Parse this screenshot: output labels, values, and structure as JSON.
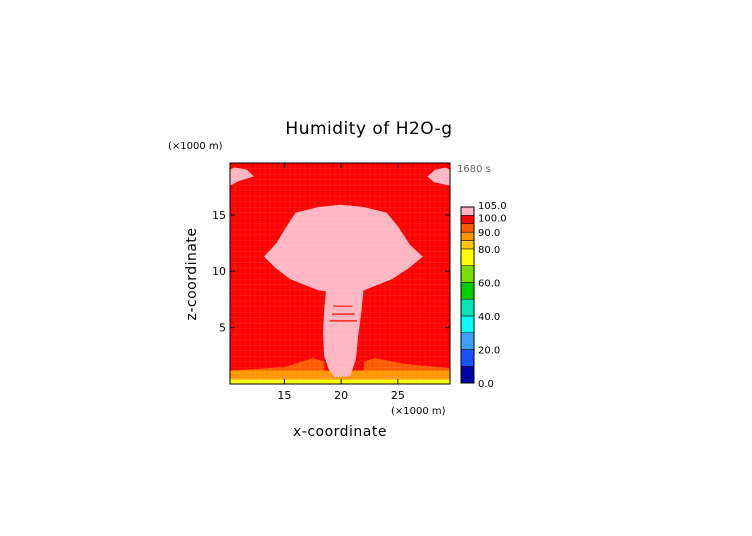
{
  "chart_data": {
    "type": "heatmap",
    "title": "Humidity of H2O-g",
    "time_label": "1680 s",
    "xlabel": "x-coordinate",
    "ylabel": "z-coordinate",
    "x_unit": "(×1000 m)",
    "y_unit": "(×1000 m)",
    "xlim": [
      10.2,
      29.6
    ],
    "ylim": [
      0,
      19.6
    ],
    "x_ticks": [
      15,
      20,
      25
    ],
    "y_ticks": [
      5,
      10,
      15
    ],
    "colorbar": {
      "ticks": [
        "0.0",
        "20.0",
        "40.0",
        "60.0",
        "80.0",
        "90.0",
        "100.0",
        "105.0"
      ],
      "tick_values": [
        0,
        20,
        40,
        60,
        80,
        90,
        100,
        105
      ],
      "range": [
        0,
        105
      ],
      "levels": [
        {
          "from": 0,
          "to": 10,
          "color": "#0000a0"
        },
        {
          "from": 10,
          "to": 20,
          "color": "#1e50ff"
        },
        {
          "from": 20,
          "to": 30,
          "color": "#3ca0ff"
        },
        {
          "from": 30,
          "to": 40,
          "color": "#00ffff"
        },
        {
          "from": 40,
          "to": 50,
          "color": "#00e6b4"
        },
        {
          "from": 50,
          "to": 60,
          "color": "#00cc00"
        },
        {
          "from": 60,
          "to": 70,
          "color": "#7ddc00"
        },
        {
          "from": 70,
          "to": 80,
          "color": "#ffff00"
        },
        {
          "from": 80,
          "to": 85,
          "color": "#ffc800"
        },
        {
          "from": 85,
          "to": 90,
          "color": "#ff9600"
        },
        {
          "from": 90,
          "to": 95,
          "color": "#ff5a00"
        },
        {
          "from": 95,
          "to": 100,
          "color": "#ff0000"
        },
        {
          "from": 100,
          "to": 105,
          "color": "#ffb6c1"
        }
      ]
    },
    "field": {
      "background_value": 97,
      "regions": [
        {
          "name": "surface-layer-low",
          "value": 75,
          "polygon": [
            [
              10.2,
              0
            ],
            [
              29.6,
              0
            ],
            [
              29.6,
              0.4
            ],
            [
              10.2,
              0.4
            ]
          ]
        },
        {
          "name": "surface-layer-mid",
          "value": 87,
          "polygon": [
            [
              10.2,
              0.4
            ],
            [
              29.6,
              0.4
            ],
            [
              29.6,
              1.2
            ],
            [
              10.2,
              1.2
            ]
          ]
        },
        {
          "name": "surface-layer-top",
          "value": 92,
          "polygon": [
            [
              10.2,
              1.2
            ],
            [
              15,
              1.5
            ],
            [
              17.5,
              2.3
            ],
            [
              18.5,
              2.0
            ],
            [
              18.5,
              1.2
            ],
            [
              22,
              1.2
            ],
            [
              22,
              2.0
            ],
            [
              23,
              2.3
            ],
            [
              25.5,
              1.8
            ],
            [
              29.6,
              1.4
            ],
            [
              29.6,
              1.2
            ]
          ]
        },
        {
          "name": "cloud-anvil",
          "value": 102,
          "polygon": [
            [
              13.2,
              11.3
            ],
            [
              14.3,
              12.5
            ],
            [
              15.2,
              14.0
            ],
            [
              16.0,
              15.2
            ],
            [
              18.0,
              15.7
            ],
            [
              20.0,
              15.9
            ],
            [
              22.0,
              15.7
            ],
            [
              24.0,
              15.2
            ],
            [
              25.0,
              14.0
            ],
            [
              26.1,
              12.3
            ],
            [
              27.2,
              11.3
            ],
            [
              26.0,
              10.3
            ],
            [
              24.5,
              9.3
            ],
            [
              22.0,
              8.3
            ],
            [
              20.0,
              8.0
            ],
            [
              18.0,
              8.3
            ],
            [
              15.5,
              9.3
            ],
            [
              14.2,
              10.3
            ]
          ]
        },
        {
          "name": "cloud-column",
          "value": 102,
          "polygon": [
            [
              18.7,
              8.6
            ],
            [
              22.0,
              8.6
            ],
            [
              21.8,
              6.5
            ],
            [
              21.5,
              4.2
            ],
            [
              21.3,
              2.2
            ],
            [
              20.8,
              0.7
            ],
            [
              19.4,
              0.6
            ],
            [
              18.9,
              1.3
            ],
            [
              18.5,
              2.5
            ],
            [
              18.4,
              4.5
            ],
            [
              18.5,
              6.5
            ]
          ]
        },
        {
          "name": "cloud-top-left",
          "value": 102,
          "polygon": [
            [
              10.2,
              17.6
            ],
            [
              11.0,
              18.0
            ],
            [
              12.3,
              18.4
            ],
            [
              11.7,
              19.0
            ],
            [
              10.6,
              19.2
            ],
            [
              10.2,
              19.0
            ]
          ]
        },
        {
          "name": "cloud-top-right",
          "value": 102,
          "polygon": [
            [
              29.6,
              17.6
            ],
            [
              28.2,
              17.9
            ],
            [
              27.6,
              18.4
            ],
            [
              28.3,
              19.0
            ],
            [
              29.2,
              19.2
            ],
            [
              29.6,
              19.0
            ]
          ]
        }
      ]
    }
  }
}
